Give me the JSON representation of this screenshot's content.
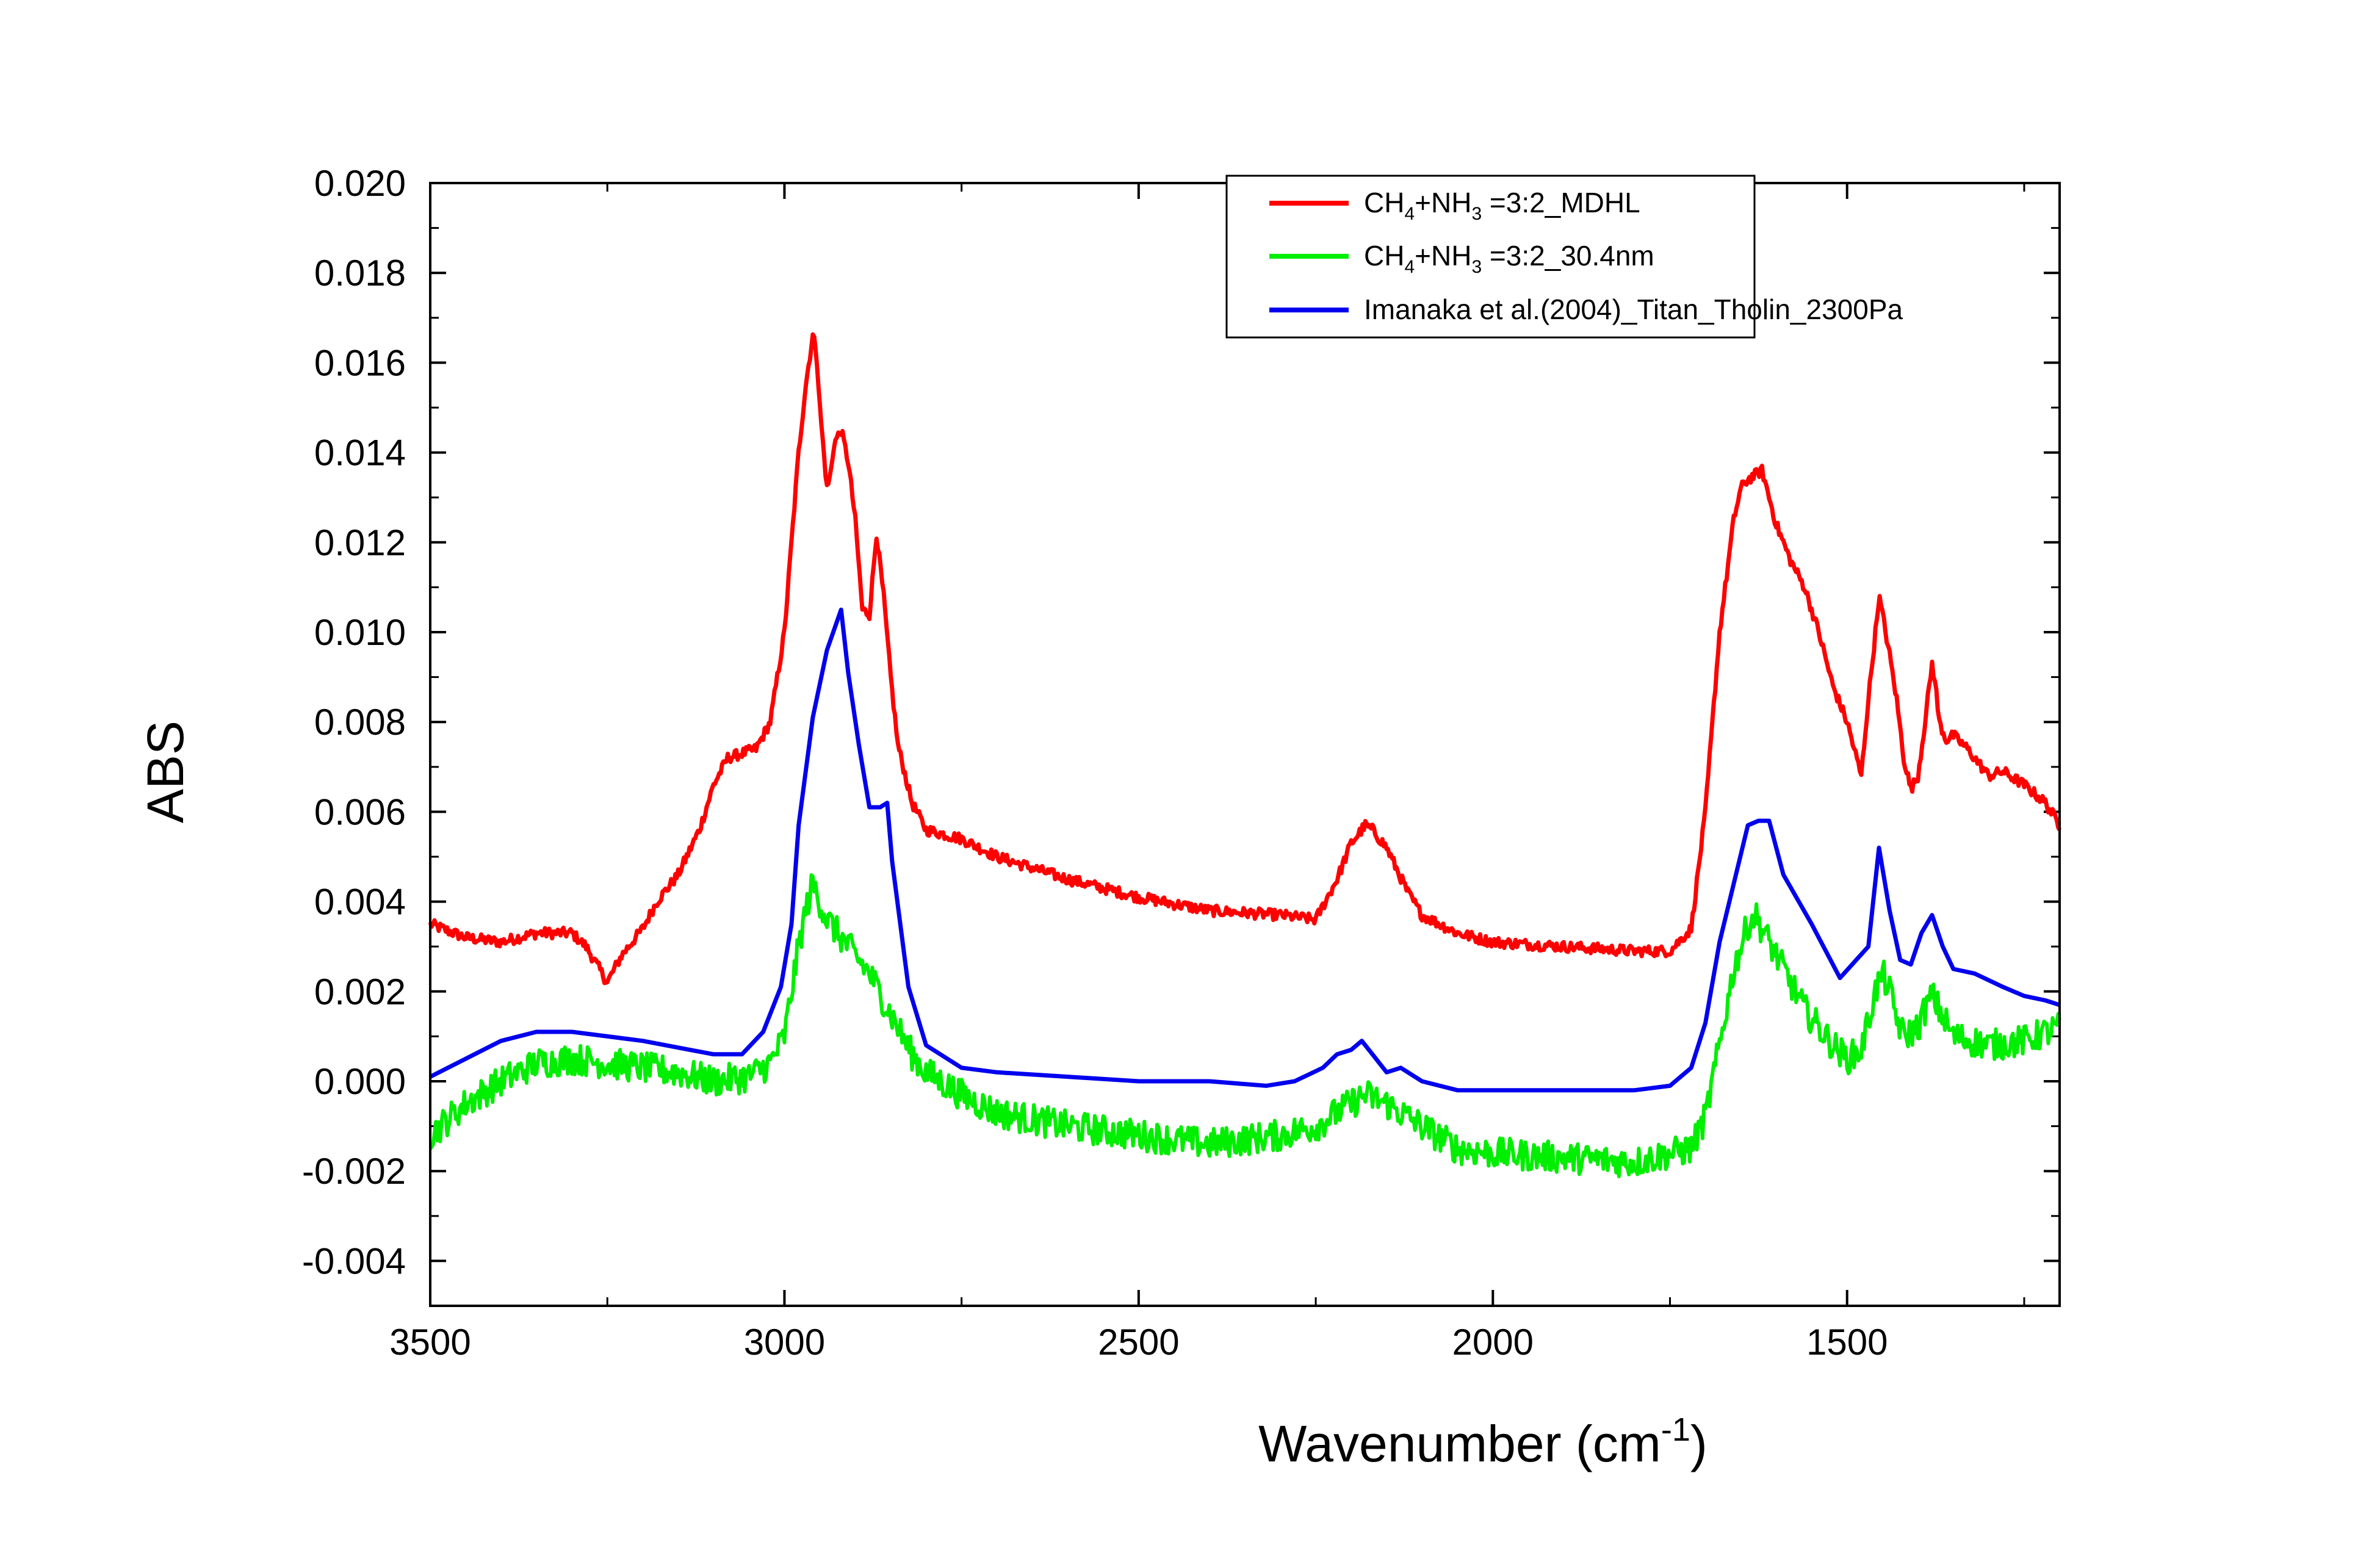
{
  "chart_data": {
    "type": "line",
    "xlabel": "Wavenumber (cm",
    "xlabel_sup": "-1",
    "xlabel_end": ")",
    "ylabel": "ABS",
    "xlim": [
      3500,
      1200
    ],
    "ylim": [
      -0.005,
      0.02
    ],
    "x_reversed": true,
    "grid": false,
    "legend_position": "top-right",
    "x_ticks": [
      3500,
      3000,
      2500,
      2000,
      1500
    ],
    "x_tick_labels": [
      "3500",
      "3000",
      "2500",
      "2000",
      "1500"
    ],
    "y_ticks": [
      -0.004,
      -0.002,
      0.0,
      0.002,
      0.004,
      0.006,
      0.008,
      0.01,
      0.012,
      0.014,
      0.016,
      0.018,
      0.02
    ],
    "y_tick_labels": [
      "-0.004",
      "-0.002",
      "0.000",
      "0.002",
      "0.004",
      "0.006",
      "0.008",
      "0.010",
      "0.012",
      "0.014",
      "0.016",
      "0.018",
      "0.020"
    ],
    "series": [
      {
        "name": "CH4+NH3 =3:2_MDHL",
        "legend_parts": [
          "CH",
          "4",
          "+NH",
          "3",
          " =3:2_MDHL"
        ],
        "color": "#ff0000",
        "noise": 0.00012,
        "x": [
          3500,
          3450,
          3400,
          3350,
          3300,
          3280,
          3250,
          3230,
          3200,
          3180,
          3150,
          3120,
          3100,
          3080,
          3060,
          3040,
          3020,
          3000,
          2990,
          2980,
          2970,
          2960,
          2955,
          2950,
          2940,
          2935,
          2930,
          2920,
          2910,
          2900,
          2890,
          2880,
          2870,
          2860,
          2850,
          2840,
          2820,
          2800,
          2750,
          2700,
          2600,
          2500,
          2400,
          2300,
          2250,
          2220,
          2200,
          2180,
          2170,
          2150,
          2120,
          2100,
          2050,
          2000,
          1900,
          1800,
          1750,
          1720,
          1700,
          1680,
          1660,
          1650,
          1640,
          1630,
          1620,
          1610,
          1600,
          1580,
          1560,
          1540,
          1520,
          1500,
          1490,
          1480,
          1470,
          1460,
          1455,
          1450,
          1440,
          1430,
          1420,
          1410,
          1400,
          1390,
          1380,
          1375,
          1370,
          1360,
          1350,
          1330,
          1300,
          1280,
          1250,
          1220,
          1200
        ],
        "y": [
          0.0035,
          0.0032,
          0.0031,
          0.0033,
          0.0033,
          0.003,
          0.0022,
          0.0028,
          0.0034,
          0.004,
          0.0046,
          0.0056,
          0.0066,
          0.0072,
          0.0073,
          0.0074,
          0.008,
          0.01,
          0.012,
          0.014,
          0.0155,
          0.0166,
          0.0163,
          0.015,
          0.0132,
          0.0135,
          0.0142,
          0.0145,
          0.0138,
          0.0125,
          0.0105,
          0.0104,
          0.0122,
          0.0108,
          0.009,
          0.0075,
          0.0062,
          0.0056,
          0.0054,
          0.005,
          0.0045,
          0.0041,
          0.0038,
          0.0037,
          0.0036,
          0.0045,
          0.0053,
          0.0057,
          0.0056,
          0.0052,
          0.0042,
          0.0037,
          0.0033,
          0.0031,
          0.003,
          0.0029,
          0.0029,
          0.0034,
          0.006,
          0.01,
          0.0125,
          0.0132,
          0.0134,
          0.0135,
          0.0136,
          0.013,
          0.0124,
          0.0116,
          0.011,
          0.01,
          0.0088,
          0.008,
          0.0074,
          0.0068,
          0.0085,
          0.01,
          0.0108,
          0.0104,
          0.0095,
          0.0085,
          0.0072,
          0.0065,
          0.0068,
          0.008,
          0.0093,
          0.0088,
          0.008,
          0.0076,
          0.0077,
          0.0074,
          0.0068,
          0.0069,
          0.0066,
          0.0062,
          0.0057
        ]
      },
      {
        "name": "CH4+NH3 =3:2_30.4nm",
        "legend_parts": [
          "CH",
          "4",
          "+NH",
          "3",
          " =3:2_30.4nm"
        ],
        "color": "#00ee00",
        "noise": 0.00035,
        "x": [
          3500,
          3450,
          3400,
          3350,
          3300,
          3250,
          3200,
          3150,
          3100,
          3050,
          3020,
          3000,
          2990,
          2980,
          2970,
          2960,
          2950,
          2940,
          2920,
          2900,
          2880,
          2860,
          2840,
          2820,
          2800,
          2750,
          2700,
          2600,
          2500,
          2400,
          2300,
          2250,
          2200,
          2180,
          2150,
          2100,
          2050,
          2000,
          1900,
          1800,
          1720,
          1700,
          1680,
          1660,
          1640,
          1630,
          1620,
          1600,
          1580,
          1560,
          1540,
          1520,
          1500,
          1480,
          1460,
          1450,
          1440,
          1430,
          1420,
          1400,
          1390,
          1380,
          1370,
          1350,
          1300,
          1250,
          1200
        ],
        "y": [
          -0.0012,
          -0.0005,
          0.0,
          0.0004,
          0.0005,
          0.0004,
          0.0003,
          0.0002,
          0.0,
          0.0001,
          0.0004,
          0.001,
          0.002,
          0.003,
          0.0038,
          0.0044,
          0.004,
          0.0036,
          0.0032,
          0.0028,
          0.0024,
          0.0018,
          0.0012,
          0.0006,
          0.0002,
          -0.0003,
          -0.0007,
          -0.001,
          -0.0012,
          -0.0014,
          -0.0012,
          -0.001,
          -0.0005,
          -0.0003,
          -0.0005,
          -0.001,
          -0.0015,
          -0.0016,
          -0.0017,
          -0.0018,
          -0.0015,
          -0.0008,
          0.0008,
          0.0025,
          0.0035,
          0.0037,
          0.0034,
          0.0028,
          0.0022,
          0.0016,
          0.0012,
          0.0008,
          0.0005,
          0.0007,
          0.002,
          0.0024,
          0.002,
          0.0014,
          0.001,
          0.0012,
          0.0016,
          0.0019,
          0.0016,
          0.001,
          0.0008,
          0.0009,
          0.0012
        ]
      },
      {
        "name": "Imanaka et al.(2004)_Titan_Tholin_2300Pa",
        "legend_parts": [
          "Imanaka et al.(2004)_Titan_Tholin_2300Pa",
          "",
          "",
          "",
          ""
        ],
        "color": "#0000ee",
        "noise": 0,
        "x": [
          3500,
          3400,
          3350,
          3300,
          3250,
          3200,
          3100,
          3060,
          3030,
          3005,
          2990,
          2980,
          2960,
          2940,
          2920,
          2910,
          2895,
          2880,
          2865,
          2855,
          2848,
          2825,
          2800,
          2750,
          2700,
          2600,
          2500,
          2400,
          2320,
          2280,
          2240,
          2220,
          2200,
          2185,
          2170,
          2150,
          2130,
          2100,
          2050,
          2000,
          1900,
          1850,
          1800,
          1750,
          1720,
          1700,
          1680,
          1660,
          1640,
          1625,
          1610,
          1590,
          1550,
          1510,
          1470,
          1455,
          1440,
          1425,
          1410,
          1395,
          1380,
          1365,
          1350,
          1320,
          1280,
          1250,
          1220,
          1200
        ],
        "y": [
          0.0001,
          0.0009,
          0.0011,
          0.0011,
          0.001,
          0.0009,
          0.0006,
          0.0006,
          0.0011,
          0.0021,
          0.0035,
          0.0057,
          0.0081,
          0.0096,
          0.0105,
          0.0091,
          0.0075,
          0.0061,
          0.0061,
          0.0062,
          0.0049,
          0.0021,
          0.0008,
          0.0003,
          0.0002,
          0.0001,
          0.0,
          0.0,
          -0.0001,
          0.0,
          0.0003,
          0.0006,
          0.0007,
          0.0009,
          0.0006,
          0.0002,
          0.0003,
          0.0,
          -0.0002,
          -0.0002,
          -0.0002,
          -0.0002,
          -0.0002,
          -0.0001,
          0.0003,
          0.0013,
          0.0031,
          0.0044,
          0.0057,
          0.0058,
          0.0058,
          0.0046,
          0.0035,
          0.0023,
          0.003,
          0.0052,
          0.0038,
          0.0027,
          0.0026,
          0.0033,
          0.0037,
          0.003,
          0.0025,
          0.0024,
          0.0021,
          0.0019,
          0.0018,
          0.0017
        ]
      }
    ]
  }
}
